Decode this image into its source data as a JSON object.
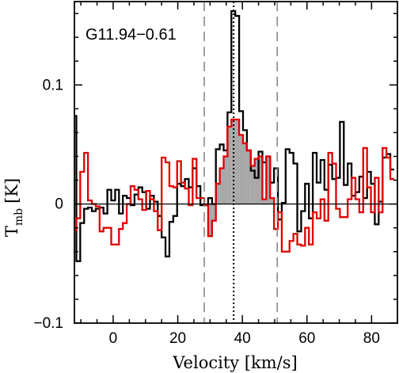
{
  "chart_data": {
    "type": "line",
    "title": "",
    "annotation": "G11.94−0.61",
    "xlabel": "Velocity [km/s]",
    "ylabel_main": "T",
    "ylabel_sub": "mb",
    "ylabel_unit": "[K]",
    "xlim": [
      -12,
      88
    ],
    "ylim": [
      -0.1,
      0.17
    ],
    "x_ticks": [
      0,
      20,
      40,
      60,
      80
    ],
    "x_tick_labels": [
      "0",
      "20",
      "40",
      "60",
      "80"
    ],
    "y_ticks": [
      -0.1,
      0,
      0.1
    ],
    "y_tick_labels": [
      "−0.1",
      "0",
      "0.1"
    ],
    "vlines": [
      {
        "x": 28.2,
        "style": "dashed",
        "color": "#888888"
      },
      {
        "x": 37.3,
        "style": "dotted",
        "color": "#000000"
      },
      {
        "x": 50.8,
        "style": "dashed",
        "color": "#888888"
      }
    ],
    "shade_range": [
      28.2,
      49.8
    ],
    "shade_series": 1,
    "shade_color": "#a8a8a8",
    "series": [
      {
        "color": "#000000",
        "x": [
          -12.0,
          -10.8,
          -9.6,
          -8.4,
          -7.2,
          -6.0,
          -4.8,
          -3.6,
          -2.4,
          -1.2,
          0.0,
          1.2,
          2.4,
          3.6,
          4.8,
          6.0,
          7.2,
          8.4,
          9.6,
          10.8,
          12.0,
          13.2,
          14.4,
          15.6,
          16.8,
          18.0,
          19.2,
          20.4,
          21.6,
          22.8,
          24.0,
          25.2,
          26.4,
          27.6,
          28.8,
          30.0,
          31.2,
          32.4,
          33.6,
          34.8,
          36.0,
          37.2,
          38.4,
          39.6,
          40.8,
          42.0,
          43.2,
          44.4,
          45.6,
          46.8,
          48.0,
          49.2,
          50.4,
          51.6,
          52.8,
          54.0,
          55.2,
          56.4,
          57.6,
          58.8,
          60.0,
          61.2,
          62.4,
          63.6,
          64.8,
          66.0,
          67.2,
          68.4,
          69.6,
          70.8,
          72.0,
          73.2,
          74.4,
          75.6,
          76.8,
          78.0,
          79.2,
          80.4,
          81.6,
          82.8,
          84.0,
          85.2,
          86.4
        ],
        "y": [
          0.074,
          -0.048,
          -0.016,
          -0.004,
          -0.003,
          -0.006,
          -0.004,
          -0.003,
          -0.008,
          0.012,
          0.003,
          0.012,
          -0.008,
          0.007,
          0.005,
          -0.001,
          0.008,
          0.014,
          0.01,
          -0.004,
          0.007,
          0.002,
          -0.01,
          -0.028,
          -0.044,
          -0.015,
          -0.01,
          0.017,
          0.015,
          0.021,
          0.014,
          0.03,
          0.015,
          -0.001,
          -0.001,
          0.005,
          0.0,
          0.046,
          0.05,
          0.045,
          0.077,
          0.162,
          0.158,
          0.078,
          0.062,
          0.045,
          0.028,
          0.022,
          0.044,
          0.035,
          0.04,
          0.018,
          0.03,
          -0.013,
          0.001,
          0.046,
          0.043,
          0.034,
          -0.023,
          -0.006,
          0.017,
          -0.012,
          0.043,
          0.018,
          0.037,
          0.012,
          0.033,
          0.021,
          0.022,
          0.069,
          0.016,
          0.034,
          0.007,
          0.01,
          0.023,
          0.005,
          0.027,
          0.017,
          -0.017,
          0.002,
          0.039,
          0.042,
          0.029
        ]
      },
      {
        "color": "#e00000",
        "x": [
          -12.0,
          -10.8,
          -9.6,
          -8.4,
          -7.2,
          -6.0,
          -4.8,
          -3.6,
          -2.4,
          -1.2,
          0.0,
          1.2,
          2.4,
          3.6,
          4.8,
          6.0,
          7.2,
          8.4,
          9.6,
          10.8,
          12.0,
          13.2,
          14.4,
          15.6,
          16.8,
          18.0,
          19.2,
          20.4,
          21.6,
          22.8,
          24.0,
          25.2,
          26.4,
          27.6,
          28.8,
          30.0,
          31.2,
          32.4,
          33.6,
          34.8,
          36.0,
          37.2,
          38.4,
          39.6,
          40.8,
          42.0,
          43.2,
          44.4,
          45.6,
          46.8,
          48.0,
          49.2,
          50.4,
          51.6,
          52.8,
          54.0,
          55.2,
          56.4,
          57.6,
          58.8,
          60.0,
          61.2,
          62.4,
          63.6,
          64.8,
          66.0,
          67.2,
          68.4,
          69.6,
          70.8,
          72.0,
          73.2,
          74.4,
          75.6,
          76.8,
          78.0,
          79.2,
          80.4,
          81.6,
          82.8,
          84.0,
          85.2,
          86.4
        ],
        "y": [
          -0.022,
          -0.012,
          0.027,
          0.043,
          0.003,
          0.0,
          -0.002,
          -0.023,
          -0.02,
          -0.02,
          -0.034,
          -0.034,
          -0.021,
          -0.016,
          0.0,
          0.015,
          0.012,
          0.004,
          -0.005,
          0.011,
          0.004,
          -0.006,
          -0.022,
          0.039,
          0.035,
          0.015,
          0.014,
          0.036,
          0.018,
          0.013,
          -0.001,
          0.038,
          0.005,
          0.005,
          -0.001,
          -0.027,
          -0.014,
          0.017,
          0.03,
          0.04,
          0.065,
          0.071,
          0.071,
          0.058,
          0.051,
          0.045,
          0.032,
          0.038,
          0.04,
          0.004,
          0.04,
          0.005,
          -0.021,
          -0.007,
          -0.04,
          -0.04,
          -0.031,
          -0.025,
          -0.034,
          -0.035,
          -0.02,
          -0.034,
          -0.007,
          -0.012,
          0.004,
          -0.014,
          0.043,
          0.034,
          -0.004,
          -0.011,
          -0.011,
          0.004,
          0.022,
          0.004,
          -0.007,
          0.047,
          0.014,
          -0.007,
          0.022,
          -0.007,
          0.047,
          0.039,
          0.021
        ]
      }
    ]
  }
}
